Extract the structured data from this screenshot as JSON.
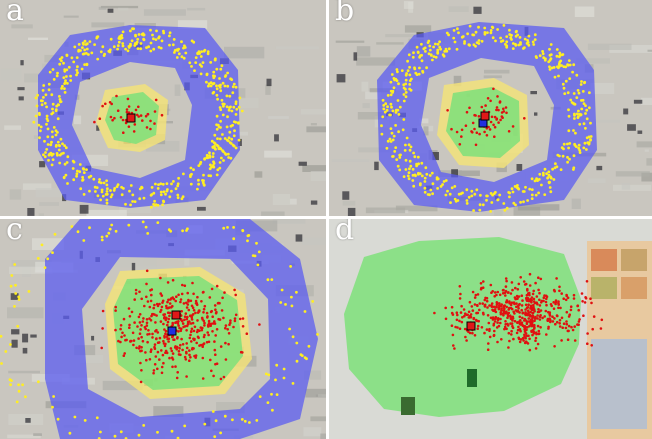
{
  "panels": [
    {
      "label": "a",
      "has_outer_ring": true,
      "has_yellow_zone": true,
      "has_blue_marker": false,
      "yellow_points": 520,
      "red_points": 45
    },
    {
      "label": "b",
      "has_outer_ring": true,
      "has_yellow_zone": true,
      "has_blue_marker": true,
      "yellow_points": 480,
      "red_points": 60
    },
    {
      "label": "c",
      "has_outer_ring": true,
      "has_yellow_zone": true,
      "has_blue_marker": true,
      "yellow_points": 140,
      "red_points": 420
    },
    {
      "label": "d",
      "has_outer_ring": false,
      "has_yellow_zone": false,
      "has_blue_marker": false,
      "yellow_points": 0,
      "red_points": 520
    }
  ],
  "colors": {
    "outer_ring": "#5b5cf0",
    "yellow_zone": "#f2e27a",
    "green_zone": "#7ee07a",
    "yellow_point": "#ffee22",
    "red_point": "#e01010",
    "red_marker": "#e01818",
    "blue_marker": "#2030e0",
    "background_paper": "#c9c6bf",
    "background_wall": "#d9dad5"
  }
}
